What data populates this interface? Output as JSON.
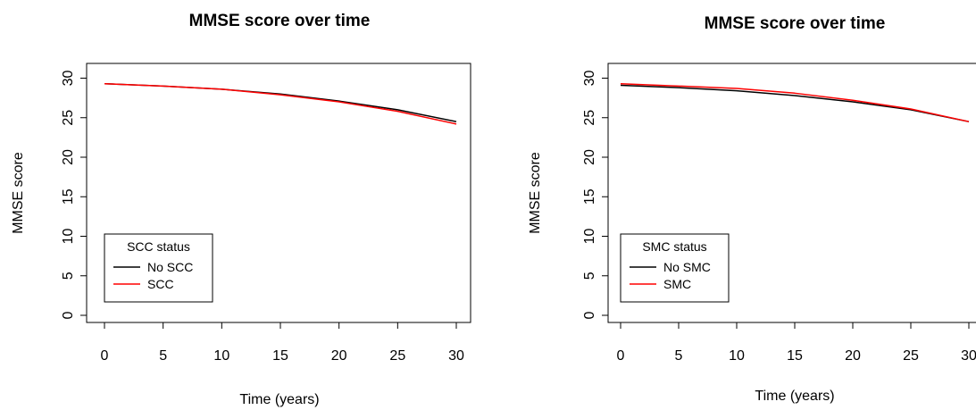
{
  "chart_data": [
    {
      "type": "line",
      "title": "MMSE score over time",
      "xlabel": "Time (years)",
      "ylabel": "MMSE score",
      "xlim": [
        0,
        30
      ],
      "ylim": [
        0,
        30
      ],
      "x_ticks": [
        0,
        5,
        10,
        15,
        20,
        25,
        30
      ],
      "y_ticks": [
        0,
        5,
        10,
        15,
        20,
        25,
        30
      ],
      "legend": {
        "title": "SCC status",
        "position": "bottom-left"
      },
      "series": [
        {
          "name": "No SCC",
          "color": "#000000",
          "x": [
            0,
            5,
            10,
            15,
            20,
            25,
            30
          ],
          "y": [
            29.3,
            29.0,
            28.6,
            28.0,
            27.1,
            26.0,
            24.5
          ]
        },
        {
          "name": "SCC",
          "color": "#ff0000",
          "x": [
            0,
            5,
            10,
            15,
            20,
            25,
            30
          ],
          "y": [
            29.3,
            29.0,
            28.6,
            27.9,
            27.0,
            25.8,
            24.2
          ]
        }
      ]
    },
    {
      "type": "line",
      "title": "MMSE score over time",
      "xlabel": "Time (years)",
      "ylabel": "MMSE score",
      "xlim": [
        0,
        30
      ],
      "ylim": [
        0,
        30
      ],
      "x_ticks": [
        0,
        5,
        10,
        15,
        20,
        25,
        30
      ],
      "y_ticks": [
        0,
        5,
        10,
        15,
        20,
        25,
        30
      ],
      "legend": {
        "title": "SMC status",
        "position": "bottom-left"
      },
      "series": [
        {
          "name": "No SMC",
          "color": "#000000",
          "x": [
            0,
            5,
            10,
            15,
            20,
            25,
            30
          ],
          "y": [
            29.1,
            28.8,
            28.4,
            27.8,
            27.0,
            26.0,
            24.5
          ]
        },
        {
          "name": "SMC",
          "color": "#ff0000",
          "x": [
            0,
            5,
            10,
            15,
            20,
            25,
            30
          ],
          "y": [
            29.3,
            29.0,
            28.7,
            28.1,
            27.2,
            26.1,
            24.5
          ]
        }
      ]
    }
  ]
}
